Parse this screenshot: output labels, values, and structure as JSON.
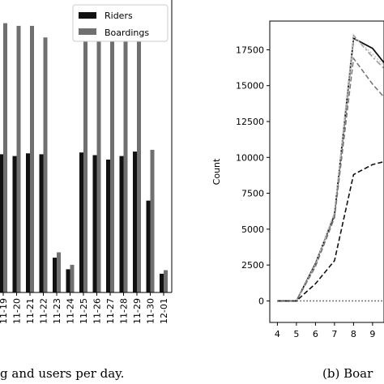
{
  "chart_data": [
    {
      "type": "bar",
      "categories": [
        "11-19",
        "11-20",
        "11-21",
        "11-22",
        "11-23",
        "11-24",
        "11-25",
        "11-26",
        "11-27",
        "11-28",
        "11-29",
        "11-30",
        "12-01"
      ],
      "series": [
        {
          "name": "Riders",
          "color": "#111111",
          "values": [
            1550,
            1530,
            1560,
            1550,
            390,
            260,
            1570,
            1540,
            1490,
            1530,
            1580,
            1030,
            210
          ]
        },
        {
          "name": "Boardings",
          "color": "#707070",
          "values": [
            3020,
            2990,
            2990,
            2860,
            450,
            310,
            2920,
            2920,
            2910,
            2920,
            2880,
            1600,
            250
          ]
        }
      ],
      "ylim": [
        0,
        3280
      ],
      "legend": "top-right",
      "grid": false,
      "caption": "g and users per day."
    },
    {
      "type": "line",
      "ylabel": "Count",
      "x_ticks": [
        4,
        5,
        6,
        7,
        8,
        9
      ],
      "y_ticks": [
        0,
        2500,
        5000,
        7500,
        10000,
        12500,
        15000,
        17500
      ],
      "xlim": [
        3.6,
        9.6
      ],
      "ylim": [
        -1500,
        19500
      ],
      "grid": false,
      "series": [
        {
          "style": "solid",
          "color": "#111111",
          "x": [
            4,
            5,
            6,
            7,
            8,
            9,
            9.6
          ],
          "y": [
            0,
            0,
            2600,
            6000,
            18300,
            17600,
            16600
          ]
        },
        {
          "style": "dashdot",
          "color": "#9a9a9a",
          "x": [
            4,
            5,
            6,
            7,
            8,
            9,
            9.6
          ],
          "y": [
            0,
            0,
            2500,
            6100,
            18500,
            17000,
            16200
          ]
        },
        {
          "style": "dotted-light",
          "color": "#c8c8c8",
          "x": [
            4,
            5,
            6,
            7,
            8,
            9,
            9.6
          ],
          "y": [
            0,
            0,
            2550,
            6200,
            18400,
            17200,
            16400
          ]
        },
        {
          "style": "dashed",
          "color": "#777777",
          "x": [
            4,
            5,
            6,
            7,
            8,
            9,
            9.6
          ],
          "y": [
            0,
            0,
            2400,
            5800,
            16900,
            15100,
            14200
          ]
        },
        {
          "style": "dashed",
          "color": "#111111",
          "x": [
            4,
            5,
            6,
            7,
            8,
            9,
            9.6
          ],
          "y": [
            0,
            0,
            1200,
            2800,
            8800,
            9500,
            9700
          ]
        },
        {
          "style": "dotted",
          "color": "#555555",
          "x": [
            4,
            5,
            6,
            7,
            8,
            9,
            9.6
          ],
          "y": [
            0,
            0,
            0,
            0,
            0,
            0,
            0
          ]
        }
      ],
      "caption": "(b) Boar"
    }
  ]
}
